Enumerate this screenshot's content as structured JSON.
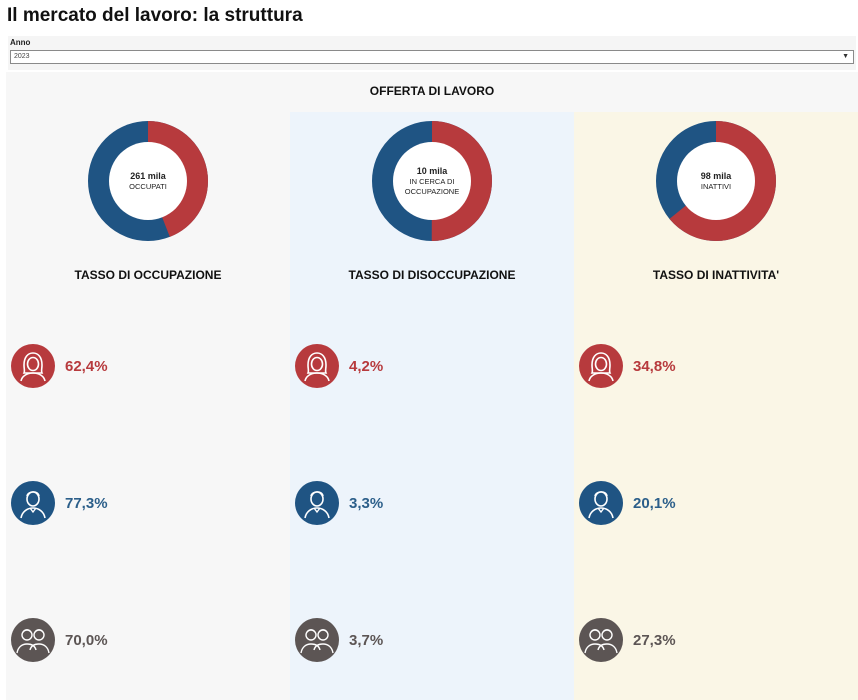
{
  "page": {
    "title": "Il mercato del lavoro: la struttura"
  },
  "filter": {
    "label": "Anno",
    "value": "2023"
  },
  "section": {
    "title": "OFFERTA DI LAVORO"
  },
  "colors": {
    "female": "#b73a3d",
    "male": "#1f5483",
    "total": "#5c5554",
    "col_occupazione_bg": "#f7f7f7",
    "col_disoccupazione_bg": "#edf4fb",
    "col_inattivita_bg": "#faf6e6"
  },
  "icons": {
    "female": "woman-icon",
    "male": "man-icon",
    "total": "people-group-icon"
  },
  "columns": [
    {
      "donut": {
        "value": "261 mila",
        "label": "OCCUPATI",
        "female_share": 0.44
      },
      "title": "TASSO DI OCCUPAZIONE",
      "rates": {
        "female": "62,4%",
        "male": "77,3%",
        "total": "70,0%"
      }
    },
    {
      "donut": {
        "value": "10 mila",
        "label": "IN CERCA DI OCCUPAZIONE",
        "female_share": 0.5
      },
      "title": "TASSO DI DISOCCUPAZIONE",
      "rates": {
        "female": "4,2%",
        "male": "3,3%",
        "total": "3,7%"
      }
    },
    {
      "donut": {
        "value": "98 mila",
        "label": "INATTIVI",
        "female_share": 0.64
      },
      "title": "TASSO DI INATTIVITA'",
      "rates": {
        "female": "34,8%",
        "male": "20,1%",
        "total": "27,3%"
      }
    }
  ]
}
